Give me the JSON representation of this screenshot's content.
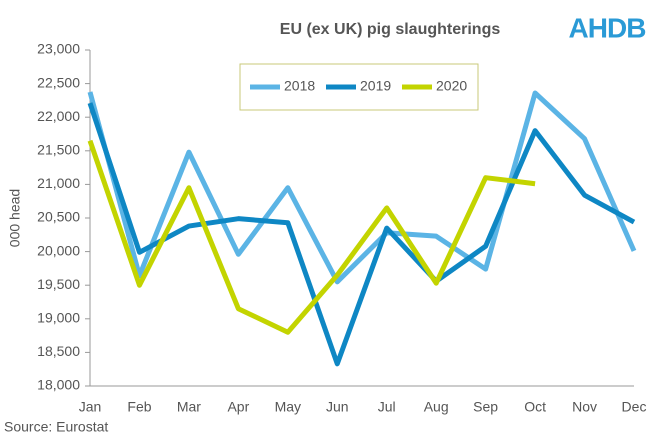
{
  "chart_data": {
    "type": "line",
    "title": "EU (ex UK) pig slaughterings",
    "ylabel": "000 head",
    "source": "Source: Eurostat",
    "logo": "AHDB",
    "categories": [
      "Jan",
      "Feb",
      "Mar",
      "Apr",
      "May",
      "Jun",
      "Jul",
      "Aug",
      "Sep",
      "Oct",
      "Nov",
      "Dec"
    ],
    "series": [
      {
        "name": "2018",
        "color": "#5bb4e5",
        "values": [
          22375,
          19640,
          21480,
          19960,
          20950,
          19550,
          20280,
          20230,
          19740,
          22360,
          21680,
          20010
        ]
      },
      {
        "name": "2019",
        "color": "#0e87c4",
        "values": [
          22210,
          19990,
          20380,
          20490,
          20430,
          18330,
          20350,
          19560,
          20080,
          21800,
          20840,
          20440
        ]
      },
      {
        "name": "2020",
        "color": "#c3d400",
        "values": [
          21650,
          19500,
          20950,
          19150,
          18800,
          19650,
          20650,
          19530,
          21100,
          21010,
          null,
          null
        ]
      }
    ],
    "ylim": [
      18000,
      23000
    ],
    "yticks": [
      {
        "value": 18000,
        "label": "18,000"
      },
      {
        "value": 18500,
        "label": "18,500"
      },
      {
        "value": 19000,
        "label": "19,000"
      },
      {
        "value": 19500,
        "label": "19,500"
      },
      {
        "value": 20000,
        "label": "20,000"
      },
      {
        "value": 20500,
        "label": "20,500"
      },
      {
        "value": 21000,
        "label": "21,000"
      },
      {
        "value": 21500,
        "label": "21,500"
      },
      {
        "value": 22000,
        "label": "22,000"
      },
      {
        "value": 22500,
        "label": "22,500"
      },
      {
        "value": 23000,
        "label": "23,000"
      }
    ],
    "legend": "top"
  }
}
